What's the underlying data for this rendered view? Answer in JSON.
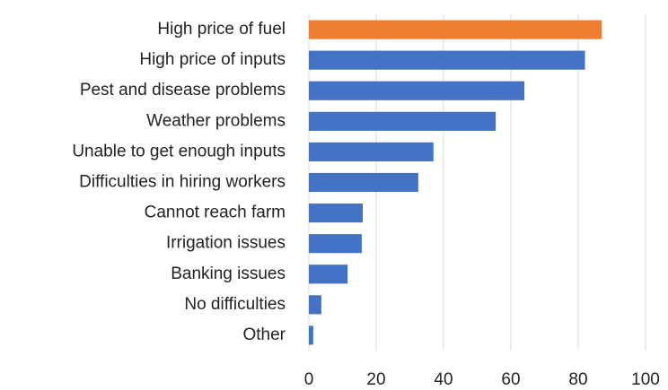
{
  "chart_data": {
    "type": "barh",
    "categories": [
      "High price of fuel",
      "High price of inputs",
      "Pest and disease problems",
      "Weather problems",
      "Unable to get enough inputs",
      "Difficulties in hiring workers",
      "Cannot reach farm",
      "Irrigation issues",
      "Banking issues",
      "No difficulties",
      "Other"
    ],
    "values": [
      87,
      82,
      64,
      55.5,
      37,
      32.5,
      16,
      15.7,
      11.5,
      3.7,
      1.3
    ],
    "colors": [
      "#ed7d31",
      "#4472c4",
      "#4472c4",
      "#4472c4",
      "#4472c4",
      "#4472c4",
      "#4472c4",
      "#4472c4",
      "#4472c4",
      "#4472c4",
      "#4472c4"
    ],
    "xlim": [
      0,
      100
    ],
    "xticks": [
      0,
      20,
      40,
      60,
      80,
      100
    ],
    "grid": true
  }
}
